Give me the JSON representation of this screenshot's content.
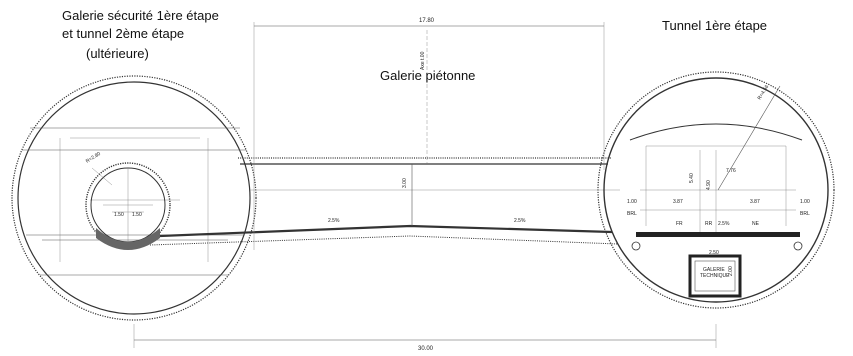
{
  "labels": {
    "left_tunnel_line1": "Galerie sécurité 1ère étape",
    "left_tunnel_line2": "et tunnel 2ème étape",
    "left_tunnel_line3": "(ultérieure)",
    "right_tunnel": "Tunnel 1ère étape",
    "center_gallery": "Galerie piétonne"
  },
  "dimensions": {
    "top_span": "17.80",
    "bottom_span": "30.00",
    "gallery_height": "3.00",
    "axis_label": "Axe t.00",
    "slope_left": "2.5%",
    "slope_right": "2.5%",
    "left_small_radius": "R=2.80",
    "left_small_w1": "1.50",
    "left_small_w2": "1.50",
    "right_radius": "R=4.56",
    "right_h_top": "7.76",
    "right_h1": "5.40",
    "right_h2": "4.90",
    "right_lane_left": "3.87",
    "right_lane_right": "3.87",
    "right_side_left": "1.00",
    "right_side_right": "1.00",
    "right_slope": "2.5%",
    "right_shoulder_left": "BRL",
    "right_shoulder_right": "BRL",
    "right_lane_fr": "FR",
    "right_lane_ne": "NE",
    "right_lane_rr": "RR",
    "gallery_box_width": "2.50",
    "gallery_box_height": "2.00",
    "gallery_box_label1": "GALERIE",
    "gallery_box_label2": "TECHNIQUE"
  }
}
